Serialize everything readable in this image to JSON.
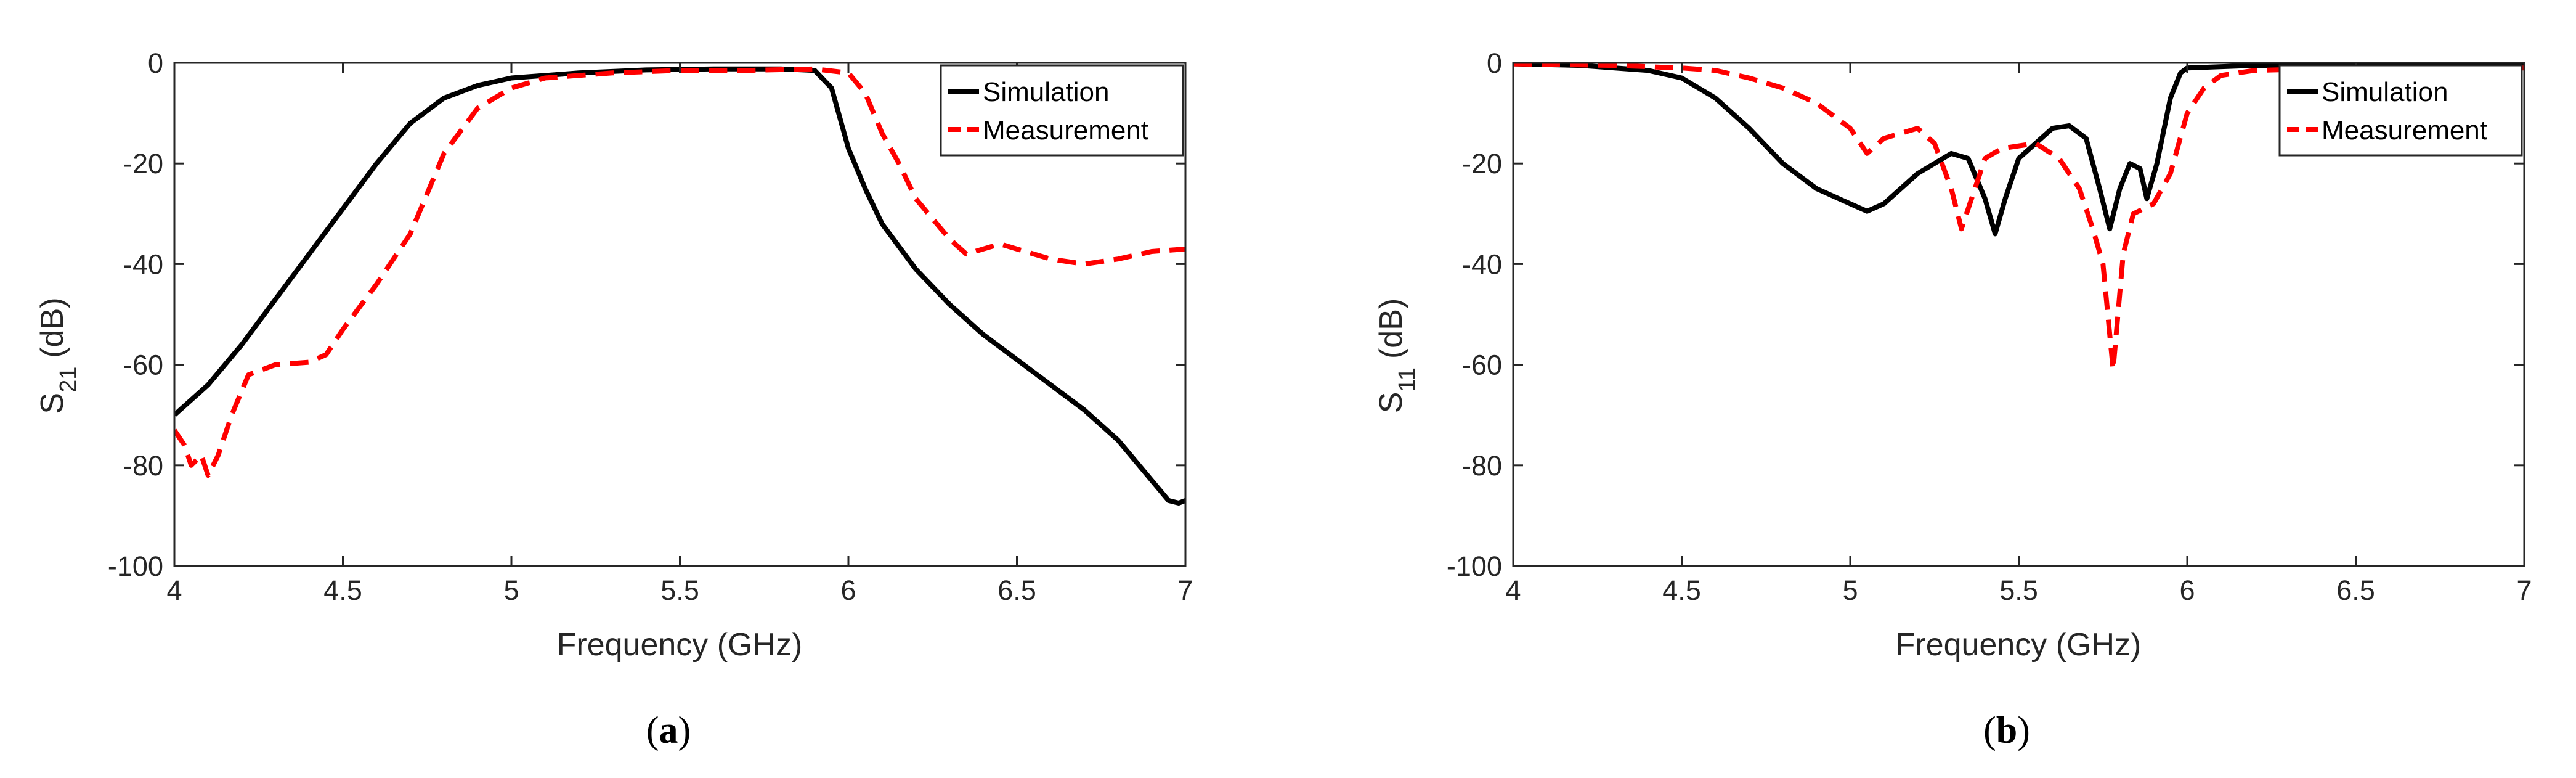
{
  "chart_data": [
    {
      "type": "line",
      "panel_label": "a",
      "xlabel": "Frequency (GHz)",
      "ylabel_main": "S",
      "ylabel_sub": "21",
      "ylabel_unit": "(dB)",
      "xlim": [
        4,
        7
      ],
      "ylim": [
        -100,
        0
      ],
      "xticks": [
        4,
        4.5,
        5,
        5.5,
        6,
        6.5,
        7
      ],
      "xtick_labels": [
        "4",
        "4.5",
        "5",
        "5.5",
        "6",
        "6.5",
        "7"
      ],
      "yticks": [
        -100,
        -80,
        -60,
        -40,
        -20,
        0
      ],
      "ytick_labels": [
        "-100",
        "-80",
        "-60",
        "-40",
        "-20",
        "0"
      ],
      "grid": false,
      "legend_position": "top-right",
      "series": [
        {
          "name": "Simulation",
          "color": "#000000",
          "dash": "solid",
          "points": [
            [
              4.0,
              -70
            ],
            [
              4.1,
              -64
            ],
            [
              4.2,
              -56
            ],
            [
              4.3,
              -47
            ],
            [
              4.4,
              -38
            ],
            [
              4.5,
              -29
            ],
            [
              4.6,
              -20
            ],
            [
              4.7,
              -12
            ],
            [
              4.8,
              -7
            ],
            [
              4.9,
              -4.5
            ],
            [
              5.0,
              -3
            ],
            [
              5.2,
              -2
            ],
            [
              5.4,
              -1.4
            ],
            [
              5.6,
              -1.2
            ],
            [
              5.8,
              -1.2
            ],
            [
              5.9,
              -1.5
            ],
            [
              5.95,
              -5
            ],
            [
              6.0,
              -17
            ],
            [
              6.05,
              -25
            ],
            [
              6.1,
              -32
            ],
            [
              6.2,
              -41
            ],
            [
              6.3,
              -48
            ],
            [
              6.4,
              -54
            ],
            [
              6.5,
              -59
            ],
            [
              6.6,
              -64
            ],
            [
              6.7,
              -69
            ],
            [
              6.8,
              -75
            ],
            [
              6.9,
              -83
            ],
            [
              6.95,
              -87
            ],
            [
              6.98,
              -87.5
            ],
            [
              7.0,
              -87
            ]
          ]
        },
        {
          "name": "Measurement",
          "color": "#ff0000",
          "dash": "dashed",
          "points": [
            [
              4.0,
              -73
            ],
            [
              4.03,
              -76
            ],
            [
              4.05,
              -80
            ],
            [
              4.08,
              -78
            ],
            [
              4.1,
              -82
            ],
            [
              4.13,
              -78
            ],
            [
              4.17,
              -70
            ],
            [
              4.22,
              -62
            ],
            [
              4.3,
              -60
            ],
            [
              4.4,
              -59.5
            ],
            [
              4.45,
              -58
            ],
            [
              4.5,
              -53
            ],
            [
              4.6,
              -44
            ],
            [
              4.7,
              -34
            ],
            [
              4.8,
              -18
            ],
            [
              4.9,
              -9
            ],
            [
              5.0,
              -5
            ],
            [
              5.1,
              -3
            ],
            [
              5.3,
              -2
            ],
            [
              5.5,
              -1.5
            ],
            [
              5.7,
              -1.5
            ],
            [
              5.9,
              -1.2
            ],
            [
              6.0,
              -2
            ],
            [
              6.05,
              -6
            ],
            [
              6.1,
              -14
            ],
            [
              6.15,
              -20
            ],
            [
              6.2,
              -27
            ],
            [
              6.25,
              -31
            ],
            [
              6.3,
              -35
            ],
            [
              6.35,
              -38
            ],
            [
              6.4,
              -37
            ],
            [
              6.45,
              -36
            ],
            [
              6.5,
              -37
            ],
            [
              6.6,
              -39
            ],
            [
              6.7,
              -40
            ],
            [
              6.8,
              -39
            ],
            [
              6.9,
              -37.5
            ],
            [
              7.0,
              -37
            ]
          ]
        }
      ]
    },
    {
      "type": "line",
      "panel_label": "b",
      "xlabel": "Frequency (GHz)",
      "ylabel_main": "S",
      "ylabel_sub": "11",
      "ylabel_unit": "(dB)",
      "xlim": [
        4,
        7
      ],
      "ylim": [
        -100,
        0
      ],
      "xticks": [
        4,
        4.5,
        5,
        5.5,
        6,
        6.5,
        7
      ],
      "xtick_labels": [
        "4",
        "4.5",
        "5",
        "5.5",
        "6",
        "6.5",
        "7"
      ],
      "yticks": [
        -100,
        -80,
        -60,
        -40,
        -20,
        0
      ],
      "ytick_labels": [
        "-100",
        "-80",
        "-60",
        "-40",
        "-20",
        "0"
      ],
      "grid": false,
      "legend_position": "top-right",
      "series": [
        {
          "name": "Simulation",
          "color": "#000000",
          "dash": "solid",
          "points": [
            [
              4.0,
              -0.2
            ],
            [
              4.2,
              -0.5
            ],
            [
              4.4,
              -1.5
            ],
            [
              4.5,
              -3
            ],
            [
              4.6,
              -7
            ],
            [
              4.7,
              -13
            ],
            [
              4.8,
              -20
            ],
            [
              4.9,
              -25
            ],
            [
              5.0,
              -28
            ],
            [
              5.05,
              -29.5
            ],
            [
              5.1,
              -28
            ],
            [
              5.2,
              -22
            ],
            [
              5.3,
              -18
            ],
            [
              5.35,
              -19
            ],
            [
              5.4,
              -27
            ],
            [
              5.43,
              -34
            ],
            [
              5.46,
              -27
            ],
            [
              5.5,
              -19
            ],
            [
              5.6,
              -13
            ],
            [
              5.65,
              -12.5
            ],
            [
              5.7,
              -15
            ],
            [
              5.74,
              -25
            ],
            [
              5.77,
              -33
            ],
            [
              5.8,
              -25
            ],
            [
              5.83,
              -20
            ],
            [
              5.86,
              -21
            ],
            [
              5.88,
              -27
            ],
            [
              5.91,
              -20
            ],
            [
              5.95,
              -7
            ],
            [
              5.98,
              -2
            ],
            [
              6.0,
              -1
            ],
            [
              6.2,
              -0.5
            ],
            [
              6.5,
              -0.5
            ],
            [
              7.0,
              -0.5
            ]
          ]
        },
        {
          "name": "Measurement",
          "color": "#ff0000",
          "dash": "dashed",
          "points": [
            [
              4.0,
              -0.2
            ],
            [
              4.3,
              -0.5
            ],
            [
              4.5,
              -1
            ],
            [
              4.6,
              -1.5
            ],
            [
              4.7,
              -3
            ],
            [
              4.8,
              -5
            ],
            [
              4.9,
              -8
            ],
            [
              5.0,
              -13
            ],
            [
              5.05,
              -18
            ],
            [
              5.1,
              -15
            ],
            [
              5.2,
              -13
            ],
            [
              5.25,
              -16
            ],
            [
              5.3,
              -25
            ],
            [
              5.33,
              -33
            ],
            [
              5.37,
              -25
            ],
            [
              5.4,
              -19
            ],
            [
              5.45,
              -17
            ],
            [
              5.55,
              -16
            ],
            [
              5.62,
              -19
            ],
            [
              5.68,
              -25
            ],
            [
              5.72,
              -33
            ],
            [
              5.75,
              -40
            ],
            [
              5.78,
              -61
            ],
            [
              5.81,
              -38
            ],
            [
              5.84,
              -30
            ],
            [
              5.9,
              -28
            ],
            [
              5.95,
              -22
            ],
            [
              6.0,
              -10
            ],
            [
              6.05,
              -5
            ],
            [
              6.1,
              -2.5
            ],
            [
              6.2,
              -1.5
            ],
            [
              6.5,
              -1
            ],
            [
              7.0,
              -1
            ]
          ]
        }
      ]
    }
  ]
}
